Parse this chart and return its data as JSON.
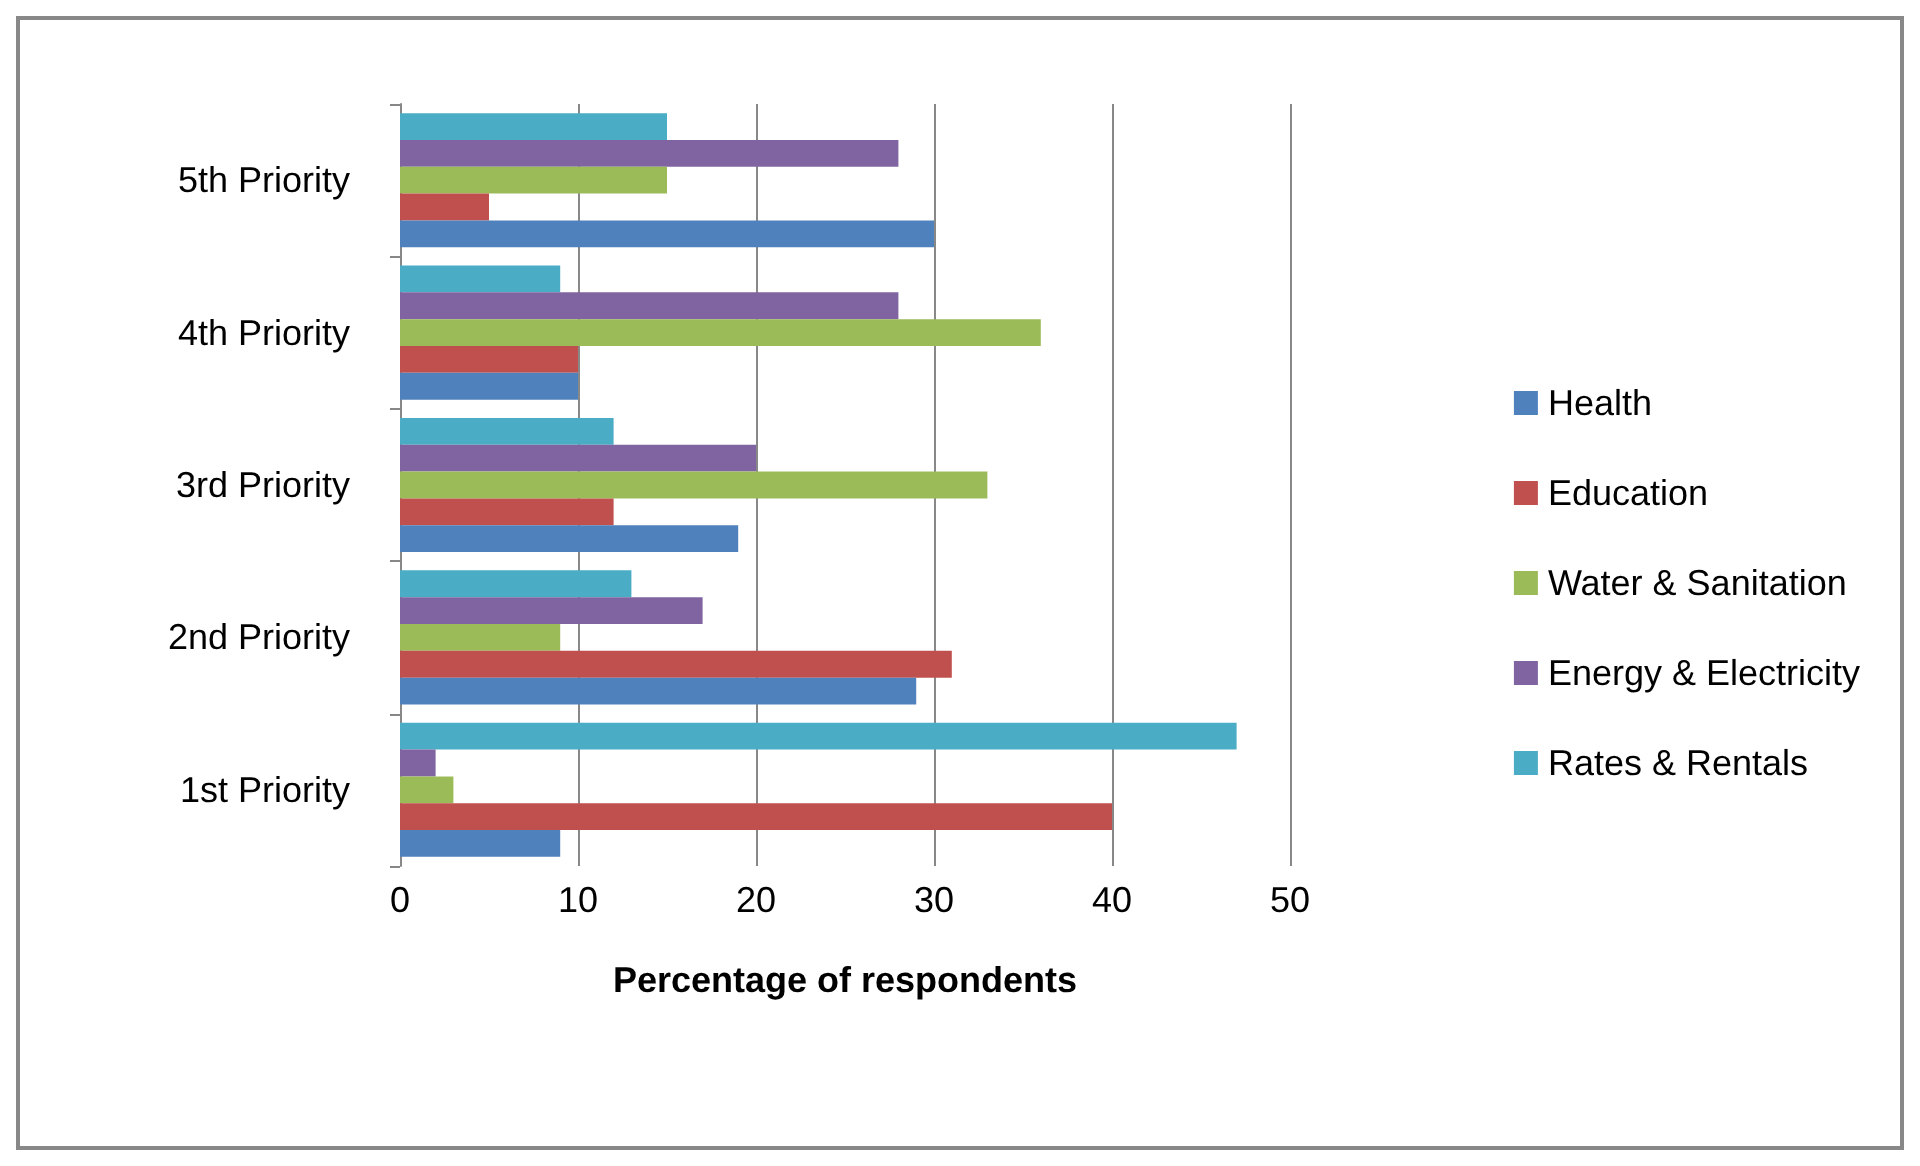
{
  "chart_data": {
    "type": "bar",
    "orientation": "horizontal",
    "xlabel": "Percentage of respondents",
    "categories": [
      "5th Priority",
      "4th Priority",
      "3rd Priority",
      "2nd Priority",
      "1st Priority"
    ],
    "series": [
      {
        "name": "Rates & Rentals",
        "color": "#4bacc6",
        "values": [
          15,
          9,
          12,
          13,
          47
        ]
      },
      {
        "name": "Energy & Electricity",
        "color": "#8064a2",
        "values": [
          28,
          28,
          20,
          17,
          2
        ]
      },
      {
        "name": "Water & Sanitation",
        "color": "#9bbb59",
        "values": [
          15,
          36,
          33,
          9,
          3
        ]
      },
      {
        "name": "Education",
        "color": "#c0504d",
        "values": [
          5,
          10,
          12,
          31,
          40
        ]
      },
      {
        "name": "Health",
        "color": "#4f81bd",
        "values": [
          30,
          10,
          19,
          29,
          9
        ]
      }
    ],
    "xlim": [
      0,
      50
    ],
    "xticks": [
      0,
      10,
      20,
      30,
      40,
      50
    ],
    "grid": "x",
    "legend": "right"
  }
}
